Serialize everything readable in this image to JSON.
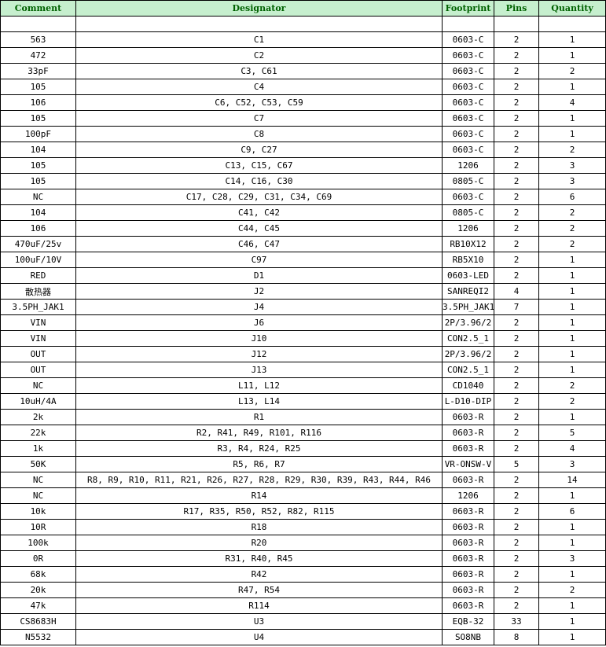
{
  "header": {
    "comment": "Comment",
    "designator": "Designator",
    "footprint": "Footprint",
    "pins": "Pins",
    "quantity": "Quantity"
  },
  "colors": {
    "header_bg": "#c6efce",
    "header_text": "#006100"
  },
  "rows": [
    [
      "",
      "",
      "",
      "",
      ""
    ],
    [
      "563",
      "C1",
      "0603-C",
      "2",
      "1"
    ],
    [
      "472",
      "C2",
      "0603-C",
      "2",
      "1"
    ],
    [
      "33pF",
      "C3, C61",
      "0603-C",
      "2",
      "2"
    ],
    [
      "105",
      "C4",
      "0603-C",
      "2",
      "1"
    ],
    [
      "106",
      "C6, C52, C53, C59",
      "0603-C",
      "2",
      "4"
    ],
    [
      "105",
      "C7",
      "0603-C",
      "2",
      "1"
    ],
    [
      "100pF",
      "C8",
      "0603-C",
      "2",
      "1"
    ],
    [
      "104",
      "C9, C27",
      "0603-C",
      "2",
      "2"
    ],
    [
      "105",
      "C13, C15, C67",
      "1206",
      "2",
      "3"
    ],
    [
      "105",
      "C14, C16, C30",
      "0805-C",
      "2",
      "3"
    ],
    [
      "NC",
      "C17, C28, C29, C31, C34, C69",
      "0603-C",
      "2",
      "6"
    ],
    [
      "104",
      "C41, C42",
      "0805-C",
      "2",
      "2"
    ],
    [
      "106",
      "C44, C45",
      "1206",
      "2",
      "2"
    ],
    [
      "470uF/25v",
      "C46, C47",
      "RB10X12",
      "2",
      "2"
    ],
    [
      "100uF/10V",
      "C97",
      "RB5X10",
      "2",
      "1"
    ],
    [
      "RED",
      "D1",
      "0603-LED",
      "2",
      "1"
    ],
    [
      "散热器",
      "J2",
      "SANREQI2",
      "4",
      "1"
    ],
    [
      "3.5PH_JAK1",
      "J4",
      "3.5PH_JAK1",
      "7",
      "1"
    ],
    [
      "VIN",
      "J6",
      "2P/3.96/2",
      "2",
      "1"
    ],
    [
      "VIN",
      "J10",
      "CON2.5_1",
      "2",
      "1"
    ],
    [
      "OUT",
      "J12",
      "2P/3.96/2",
      "2",
      "1"
    ],
    [
      "OUT",
      "J13",
      "CON2.5_1",
      "2",
      "1"
    ],
    [
      "NC",
      "L11, L12",
      "CD1040",
      "2",
      "2"
    ],
    [
      "10uH/4A",
      "L13, L14",
      "L-D10-DIP",
      "2",
      "2"
    ],
    [
      "2k",
      "R1",
      "0603-R",
      "2",
      "1"
    ],
    [
      "22k",
      "R2, R41, R49, R101, R116",
      "0603-R",
      "2",
      "5"
    ],
    [
      "1k",
      "R3, R4, R24, R25",
      "0603-R",
      "2",
      "4"
    ],
    [
      "50K",
      "R5, R6, R7",
      "VR-ONSW-V",
      "5",
      "3"
    ],
    [
      "NC",
      "R8, R9, R10, R11, R21, R26, R27, R28, R29, R30, R39, R43, R44, R46",
      "0603-R",
      "2",
      "14"
    ],
    [
      "NC",
      "R14",
      "1206",
      "2",
      "1"
    ],
    [
      "10k",
      "R17, R35, R50, R52, R82, R115",
      "0603-R",
      "2",
      "6"
    ],
    [
      "10R",
      "R18",
      "0603-R",
      "2",
      "1"
    ],
    [
      "100k",
      "R20",
      "0603-R",
      "2",
      "1"
    ],
    [
      "0R",
      "R31, R40, R45",
      "0603-R",
      "2",
      "3"
    ],
    [
      "68k",
      "R42",
      "0603-R",
      "2",
      "1"
    ],
    [
      "20k",
      "R47, R54",
      "0603-R",
      "2",
      "2"
    ],
    [
      "47k",
      "R114",
      "0603-R",
      "2",
      "1"
    ],
    [
      "CS8683H",
      "U3",
      "EQB-32",
      "33",
      "1"
    ],
    [
      "N5532",
      "U4",
      "SO8NB",
      "8",
      "1"
    ]
  ]
}
